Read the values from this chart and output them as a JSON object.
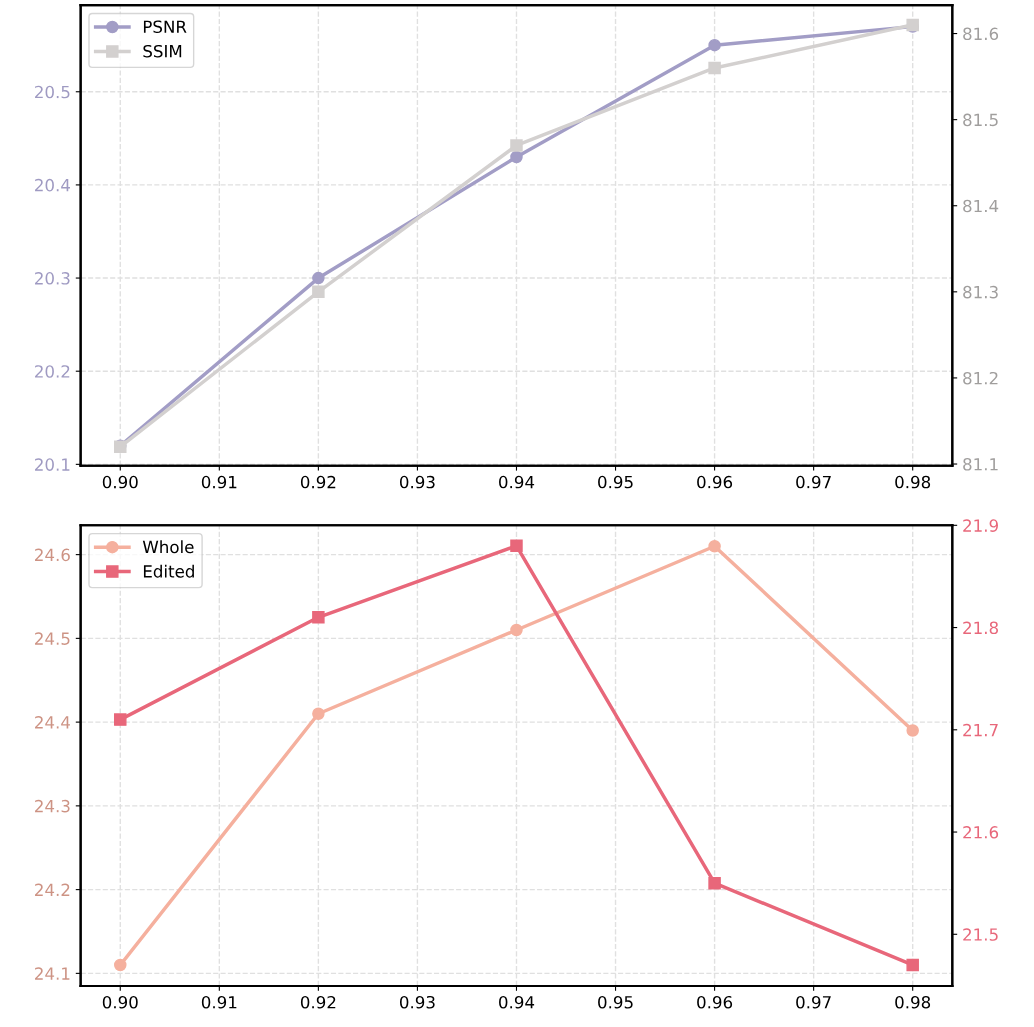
{
  "chart_data": [
    {
      "type": "line",
      "x": [
        0.9,
        0.92,
        0.94,
        0.96,
        0.98
      ],
      "series": [
        {
          "name": "PSNR",
          "color": "#a29dc6",
          "values": [
            20.12,
            20.3,
            20.43,
            20.55,
            20.57
          ],
          "marker": "circle"
        },
        {
          "name": "SSIM",
          "color": "#d3d0cf",
          "values": [
            81.12,
            81.3,
            81.47,
            81.56,
            81.61
          ],
          "marker": "square",
          "axis": "y2"
        }
      ],
      "xlim": [
        0.896,
        0.984
      ],
      "xticks": [
        {
          "value": 0.9,
          "label": "0.90"
        },
        0.91,
        0.92,
        0.93,
        0.94,
        0.95,
        0.96,
        0.97,
        0.98
      ],
      "ylim": [
        20.0985,
        20.593
      ],
      "yticks": [
        20.1,
        20.2,
        20.3,
        20.4,
        20.5
      ],
      "y2lim": [
        81.098,
        81.633
      ],
      "y2ticks": [
        81.1,
        81.2,
        81.3,
        81.4,
        81.5,
        81.6
      ],
      "grid": true,
      "legend": "top left",
      "line_style": "solid"
    },
    {
      "type": "line",
      "x": [
        0.9,
        0.92,
        0.94,
        0.96,
        0.98
      ],
      "series": [
        {
          "name": "Whole",
          "color": "#f5b09e",
          "values": [
            24.11,
            24.41,
            24.51,
            24.61,
            24.39
          ],
          "marker": "circle"
        },
        {
          "name": "Edited",
          "color": "#e8677a",
          "values": [
            21.71,
            21.81,
            21.88,
            21.55,
            21.47
          ],
          "marker": "square",
          "axis": "y2"
        }
      ],
      "xlim": [
        0.896,
        0.984
      ],
      "xticks": [
        {
          "value": 0.9,
          "label": "0.90"
        },
        0.91,
        0.92,
        0.93,
        0.94,
        0.95,
        0.96,
        0.97,
        0.98
      ],
      "ylim": [
        24.085,
        24.635
      ],
      "yticks": [
        24.1,
        24.2,
        24.3,
        24.4,
        24.5,
        24.6
      ],
      "y2lim": [
        21.4495,
        21.9
      ],
      "y2ticks": [
        21.5,
        21.6,
        21.7,
        21.8,
        21.9
      ],
      "grid": true,
      "legend": "top left",
      "line_style": "solid"
    }
  ]
}
